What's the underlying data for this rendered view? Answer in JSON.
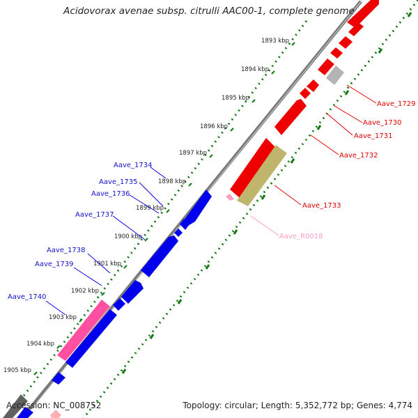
{
  "title": "Acidovorax avenae subsp. citrulli AAC00-1, complete genome",
  "footer": {
    "accession": "Accession: NC_008752",
    "summary": "Topology: circular; Length: 5,352,772 bp; Genes: 4,774"
  },
  "scale_ticks": [
    "1893 kbp",
    "1894 kbp",
    "1895 kbp",
    "1896 kbp",
    "1897 kbp",
    "1898 kbp",
    "1899 kbp",
    "1900 kbp",
    "1901 kbp",
    "1902 kbp",
    "1903 kbp",
    "1904 kbp",
    "1905 kbp"
  ],
  "colors": {
    "reverse_strand": "#0000ee",
    "forward_strand": "#ee0000",
    "rna": "#ff9ec0",
    "pseudo": "#c0b56c",
    "other": "#b4b4b4",
    "pink": "#ff4fa0",
    "backbone": "#808080",
    "ticks": "#117711"
  },
  "genes_right": [
    {
      "label": "Aave_1729"
    },
    {
      "label": "Aave_1730"
    },
    {
      "label": "Aave_1731"
    },
    {
      "label": "Aave_1732"
    },
    {
      "label": "Aave_1733"
    },
    {
      "label": "Aave_R0018"
    }
  ],
  "genes_left": [
    {
      "label": "Aave_1734"
    },
    {
      "label": "Aave_1735"
    },
    {
      "label": "Aave_1736"
    },
    {
      "label": "Aave_1737"
    },
    {
      "label": "Aave_1738"
    },
    {
      "label": "Aave_1739"
    },
    {
      "label": "Aave_1740"
    }
  ]
}
